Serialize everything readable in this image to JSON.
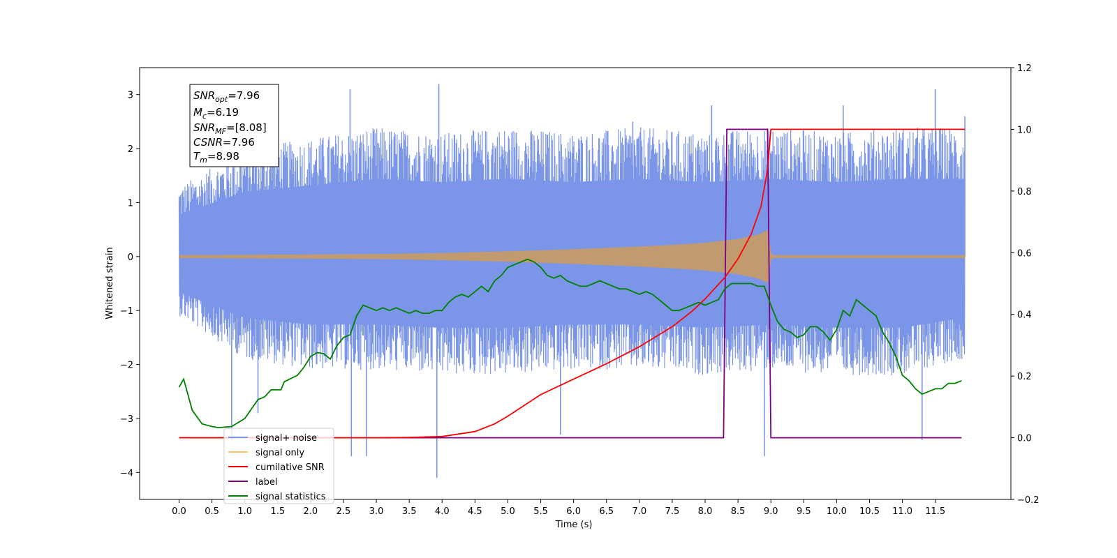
{
  "chart_data": {
    "type": "line",
    "xlabel": "Time (s)",
    "ylabel": "Whitened strain",
    "ylabel_right": "",
    "xlim": [
      -0.6,
      12.65
    ],
    "ylim": [
      -4.5,
      3.5
    ],
    "ylim_right": [
      -0.2,
      1.2
    ],
    "x_ticks": [
      "0.0",
      "0.5",
      "1.0",
      "1.5",
      "2.0",
      "2.5",
      "3.0",
      "3.5",
      "4.0",
      "4.5",
      "5.0",
      "5.5",
      "6.0",
      "6.5",
      "7.0",
      "7.5",
      "8.0",
      "8.5",
      "9.0",
      "9.5",
      "10.0",
      "10.5",
      "11.0",
      "11.5"
    ],
    "y_ticks": [
      "3",
      "2",
      "1",
      "0",
      "−1",
      "−2",
      "−3",
      "−4"
    ],
    "y_ticks_right": [
      "1.2",
      "1.0",
      "0.8",
      "0.6",
      "0.4",
      "0.2",
      "0.0",
      "−0.2"
    ],
    "grid": false,
    "legend_position": "lower-left",
    "annotations": {
      "snr_opt": "=7.96",
      "mc": "=6.19",
      "snr_mf": "=[8.08]",
      "csnr": "=7.96",
      "tm": "=8.98"
    },
    "series": [
      {
        "name": "signal+ noise",
        "axis": "left",
        "color": "#7b96e8",
        "description_note": "noise band roughly symmetric between about -2.3 and +2.4 with spikes to 3.2 and -4.1",
        "envelope_upper": [
          [
            0.0,
            1.3
          ],
          [
            1.0,
            2.0
          ],
          [
            2.0,
            2.2
          ],
          [
            3.0,
            2.4
          ],
          [
            4.0,
            2.3
          ],
          [
            5.0,
            2.4
          ],
          [
            6.0,
            2.3
          ],
          [
            7.0,
            2.4
          ],
          [
            8.0,
            2.3
          ],
          [
            9.0,
            2.4
          ],
          [
            10.0,
            2.3
          ],
          [
            11.0,
            2.4
          ],
          [
            11.9,
            2.4
          ]
        ],
        "envelope_lower": [
          [
            0.0,
            -1.1
          ],
          [
            1.0,
            -1.9
          ],
          [
            2.0,
            -2.1
          ],
          [
            3.0,
            -2.1
          ],
          [
            4.0,
            -2.2
          ],
          [
            5.0,
            -2.2
          ],
          [
            6.0,
            -2.1
          ],
          [
            7.0,
            -2.1
          ],
          [
            8.0,
            -2.2
          ],
          [
            9.0,
            -2.1
          ],
          [
            10.0,
            -2.2
          ],
          [
            11.0,
            -2.2
          ],
          [
            11.9,
            -1.9
          ]
        ],
        "spikes": [
          [
            2.6,
            3.1
          ],
          [
            3.95,
            3.2
          ],
          [
            3.92,
            -4.1
          ],
          [
            2.62,
            -3.7
          ],
          [
            2.85,
            -3.7
          ],
          [
            5.8,
            -3.3
          ],
          [
            8.9,
            -3.7
          ],
          [
            11.3,
            -3.4
          ],
          [
            11.5,
            3.1
          ],
          [
            11.95,
            2.6
          ],
          [
            0.8,
            -3.4
          ],
          [
            1.2,
            -2.9
          ],
          [
            8.1,
            2.8
          ],
          [
            6.9,
            2.5
          ],
          [
            10.1,
            2.8
          ]
        ]
      },
      {
        "name": "signal only",
        "axis": "left",
        "color": "#c19a70",
        "envelope": [
          [
            0.0,
            0.02
          ],
          [
            3.0,
            0.04
          ],
          [
            4.0,
            0.06
          ],
          [
            5.0,
            0.09
          ],
          [
            6.0,
            0.13
          ],
          [
            7.0,
            0.18
          ],
          [
            7.5,
            0.21
          ],
          [
            8.0,
            0.25
          ],
          [
            8.5,
            0.32
          ],
          [
            8.8,
            0.4
          ],
          [
            8.95,
            0.48
          ],
          [
            9.0,
            0.05
          ],
          [
            9.05,
            0.02
          ],
          [
            11.95,
            0.02
          ]
        ]
      },
      {
        "name": "cumilative SNR",
        "axis": "right",
        "color": "#ff0000",
        "points": [
          [
            0.0,
            0.0
          ],
          [
            3.0,
            0.0
          ],
          [
            3.5,
            0.001
          ],
          [
            4.0,
            0.004
          ],
          [
            4.5,
            0.02
          ],
          [
            4.8,
            0.045
          ],
          [
            5.0,
            0.07
          ],
          [
            5.5,
            0.14
          ],
          [
            6.0,
            0.19
          ],
          [
            6.5,
            0.24
          ],
          [
            7.0,
            0.295
          ],
          [
            7.5,
            0.36
          ],
          [
            7.8,
            0.41
          ],
          [
            8.0,
            0.45
          ],
          [
            8.3,
            0.52
          ],
          [
            8.5,
            0.58
          ],
          [
            8.7,
            0.66
          ],
          [
            8.85,
            0.75
          ],
          [
            8.95,
            0.87
          ],
          [
            9.0,
            1.0
          ],
          [
            11.95,
            1.0
          ]
        ]
      },
      {
        "name": "label",
        "axis": "right",
        "color": "#800080",
        "points": [
          [
            0.0,
            0.0
          ],
          [
            8.28,
            0.0
          ],
          [
            8.33,
            1.0
          ],
          [
            8.95,
            1.0
          ],
          [
            9.0,
            0.0
          ],
          [
            11.9,
            0.0
          ]
        ]
      },
      {
        "name": "signal statistics",
        "axis": "left",
        "color": "#008000",
        "points": [
          [
            0.0,
            -2.42
          ],
          [
            0.07,
            -2.27
          ],
          [
            0.2,
            -2.85
          ],
          [
            0.35,
            -3.1
          ],
          [
            0.5,
            -3.15
          ],
          [
            0.6,
            -3.17
          ],
          [
            0.8,
            -3.15
          ],
          [
            1.0,
            -3.0
          ],
          [
            1.2,
            -2.65
          ],
          [
            1.3,
            -2.6
          ],
          [
            1.4,
            -2.47
          ],
          [
            1.55,
            -2.47
          ],
          [
            1.6,
            -2.32
          ],
          [
            1.8,
            -2.2
          ],
          [
            1.9,
            -2.05
          ],
          [
            2.0,
            -1.85
          ],
          [
            2.1,
            -1.78
          ],
          [
            2.2,
            -1.8
          ],
          [
            2.3,
            -1.9
          ],
          [
            2.4,
            -1.65
          ],
          [
            2.5,
            -1.5
          ],
          [
            2.6,
            -1.45
          ],
          [
            2.7,
            -1.1
          ],
          [
            2.8,
            -0.9
          ],
          [
            2.9,
            -0.95
          ],
          [
            3.0,
            -1.0
          ],
          [
            3.1,
            -0.95
          ],
          [
            3.2,
            -1.0
          ],
          [
            3.3,
            -0.95
          ],
          [
            3.4,
            -1.0
          ],
          [
            3.5,
            -1.05
          ],
          [
            3.6,
            -1.0
          ],
          [
            3.7,
            -1.05
          ],
          [
            3.8,
            -1.05
          ],
          [
            3.9,
            -1.0
          ],
          [
            4.0,
            -1.0
          ],
          [
            4.1,
            -0.85
          ],
          [
            4.2,
            -0.75
          ],
          [
            4.3,
            -0.7
          ],
          [
            4.4,
            -0.75
          ],
          [
            4.5,
            -0.65
          ],
          [
            4.6,
            -0.55
          ],
          [
            4.7,
            -0.65
          ],
          [
            4.8,
            -0.45
          ],
          [
            4.9,
            -0.35
          ],
          [
            5.0,
            -0.2
          ],
          [
            5.1,
            -0.15
          ],
          [
            5.2,
            -0.1
          ],
          [
            5.3,
            -0.05
          ],
          [
            5.4,
            -0.1
          ],
          [
            5.5,
            -0.2
          ],
          [
            5.6,
            -0.35
          ],
          [
            5.7,
            -0.4
          ],
          [
            5.8,
            -0.35
          ],
          [
            5.9,
            -0.45
          ],
          [
            6.0,
            -0.5
          ],
          [
            6.1,
            -0.55
          ],
          [
            6.2,
            -0.55
          ],
          [
            6.3,
            -0.5
          ],
          [
            6.4,
            -0.45
          ],
          [
            6.5,
            -0.5
          ],
          [
            6.6,
            -0.55
          ],
          [
            6.7,
            -0.6
          ],
          [
            6.8,
            -0.6
          ],
          [
            6.9,
            -0.65
          ],
          [
            7.0,
            -0.7
          ],
          [
            7.1,
            -0.65
          ],
          [
            7.2,
            -0.7
          ],
          [
            7.3,
            -0.8
          ],
          [
            7.4,
            -0.9
          ],
          [
            7.5,
            -1.0
          ],
          [
            7.6,
            -1.0
          ],
          [
            7.7,
            -0.95
          ],
          [
            7.8,
            -0.9
          ],
          [
            7.9,
            -0.85
          ],
          [
            8.0,
            -0.9
          ],
          [
            8.1,
            -0.85
          ],
          [
            8.2,
            -0.8
          ],
          [
            8.3,
            -0.6
          ],
          [
            8.4,
            -0.5
          ],
          [
            8.5,
            -0.5
          ],
          [
            8.6,
            -0.5
          ],
          [
            8.7,
            -0.5
          ],
          [
            8.8,
            -0.55
          ],
          [
            8.9,
            -0.55
          ],
          [
            9.0,
            -0.9
          ],
          [
            9.1,
            -1.2
          ],
          [
            9.2,
            -1.35
          ],
          [
            9.3,
            -1.4
          ],
          [
            9.4,
            -1.5
          ],
          [
            9.5,
            -1.45
          ],
          [
            9.6,
            -1.3
          ],
          [
            9.7,
            -1.3
          ],
          [
            9.8,
            -1.4
          ],
          [
            9.9,
            -1.55
          ],
          [
            10.0,
            -1.35
          ],
          [
            10.1,
            -1.0
          ],
          [
            10.2,
            -1.1
          ],
          [
            10.3,
            -0.8
          ],
          [
            10.4,
            -0.9
          ],
          [
            10.5,
            -1.0
          ],
          [
            10.6,
            -1.1
          ],
          [
            10.7,
            -1.4
          ],
          [
            10.8,
            -1.6
          ],
          [
            10.9,
            -1.85
          ],
          [
            11.0,
            -2.2
          ],
          [
            11.1,
            -2.3
          ],
          [
            11.2,
            -2.45
          ],
          [
            11.3,
            -2.55
          ],
          [
            11.4,
            -2.5
          ],
          [
            11.5,
            -2.45
          ],
          [
            11.6,
            -2.45
          ],
          [
            11.7,
            -2.35
          ],
          [
            11.8,
            -2.35
          ],
          [
            11.9,
            -2.3
          ]
        ]
      }
    ]
  }
}
